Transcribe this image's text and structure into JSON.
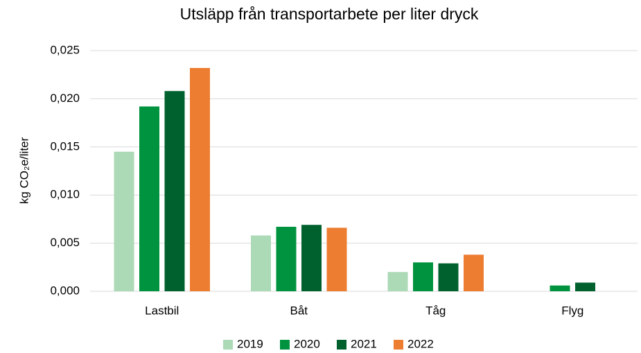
{
  "chart_data": {
    "type": "bar",
    "title": "Utsläpp från transportarbete per liter dryck",
    "y_label": "kg CO₂e/liter",
    "categories": [
      "Lastbil",
      "Båt",
      "Tåg",
      "Flyg"
    ],
    "series": [
      {
        "name": "2019",
        "color": "#acd9b6",
        "values": [
          0.0145,
          0.0058,
          0.002,
          null
        ]
      },
      {
        "name": "2020",
        "color": "#00933f",
        "values": [
          0.0192,
          0.0067,
          0.003,
          0.0006
        ]
      },
      {
        "name": "2021",
        "color": "#00612e",
        "values": [
          0.0208,
          0.0069,
          0.0029,
          0.0009
        ]
      },
      {
        "name": "2022",
        "color": "#ed7d31",
        "values": [
          0.0232,
          0.0066,
          0.0038,
          null
        ]
      }
    ],
    "ylim": [
      0,
      0.025
    ],
    "yticks": [
      {
        "value": 0,
        "label": "0,000"
      },
      {
        "value": 0.005,
        "label": "0,005"
      },
      {
        "value": 0.01,
        "label": "0,010"
      },
      {
        "value": 0.015,
        "label": "0,015"
      },
      {
        "value": 0.02,
        "label": "0,020"
      },
      {
        "value": 0.025,
        "label": "0,025"
      }
    ],
    "grid": true,
    "legend": "bottom"
  }
}
